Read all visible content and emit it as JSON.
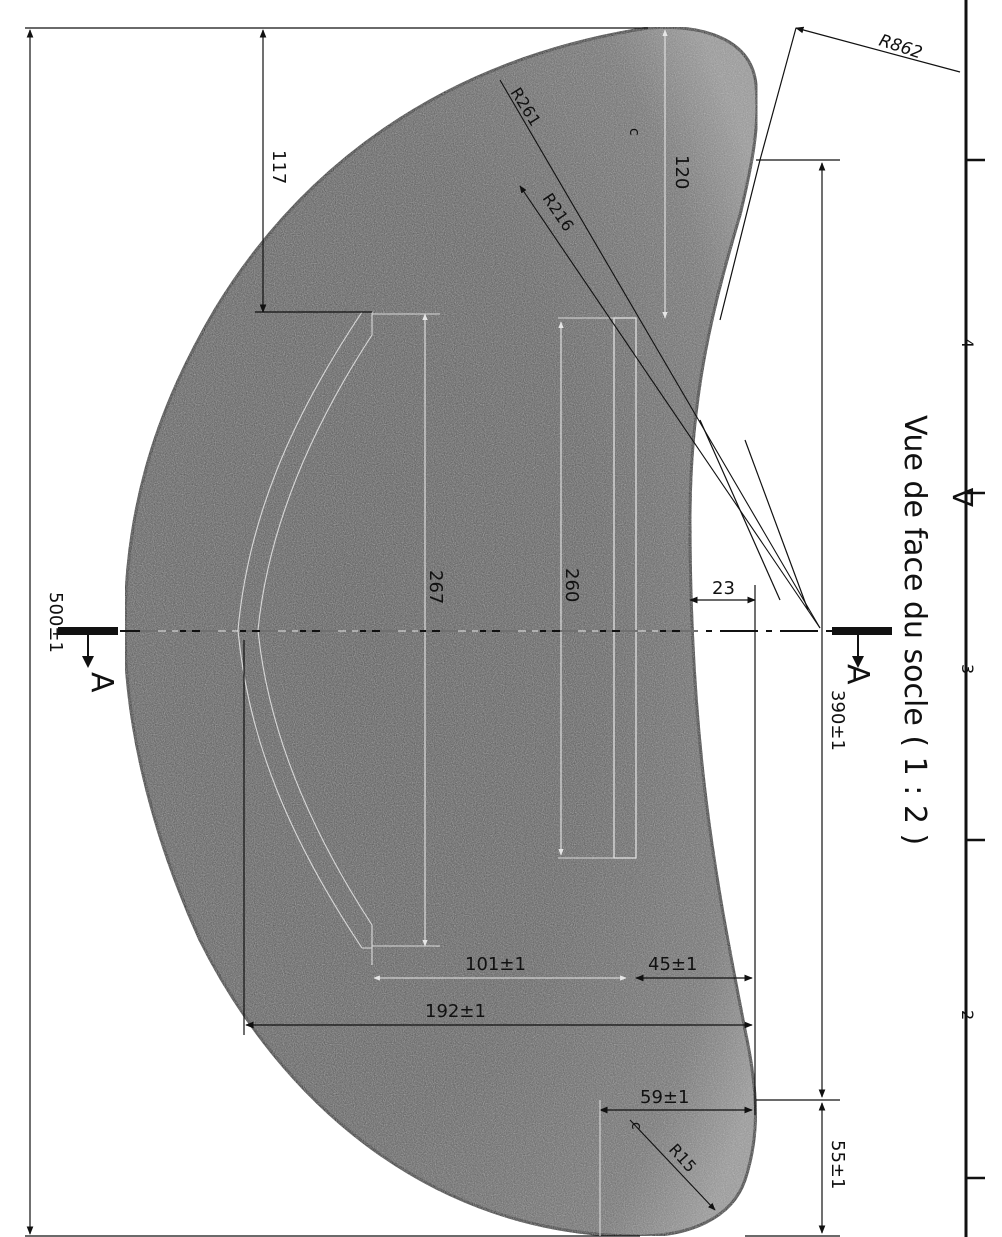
{
  "title": "Vue de face du socle ( 1 : 2 )",
  "section_marks": [
    "A",
    "A"
  ],
  "dimensions": {
    "overall_height": "500±1",
    "inner_height": "390±1",
    "bottom_offset": "55±1",
    "top_offset_left": "117",
    "top_offset_right": "120",
    "slot_left": "267",
    "slot_center": "260",
    "small_gap": "23",
    "width_101": "101±1",
    "width_45": "45±1",
    "width_192": "192±1",
    "width_59": "59±1"
  },
  "radii": {
    "outer": "R862",
    "r261": "R261",
    "r216": "R216",
    "r15": "R15"
  },
  "border_ticks": [
    "4",
    "3",
    "2"
  ],
  "reference_symbol": "∇",
  "small_marks": [
    "c",
    "c"
  ],
  "colors": {
    "part_fill_dark": "#3a3a3a",
    "part_fill_light": "#8c8c8c",
    "line": "#111111",
    "background": "#ffffff"
  }
}
